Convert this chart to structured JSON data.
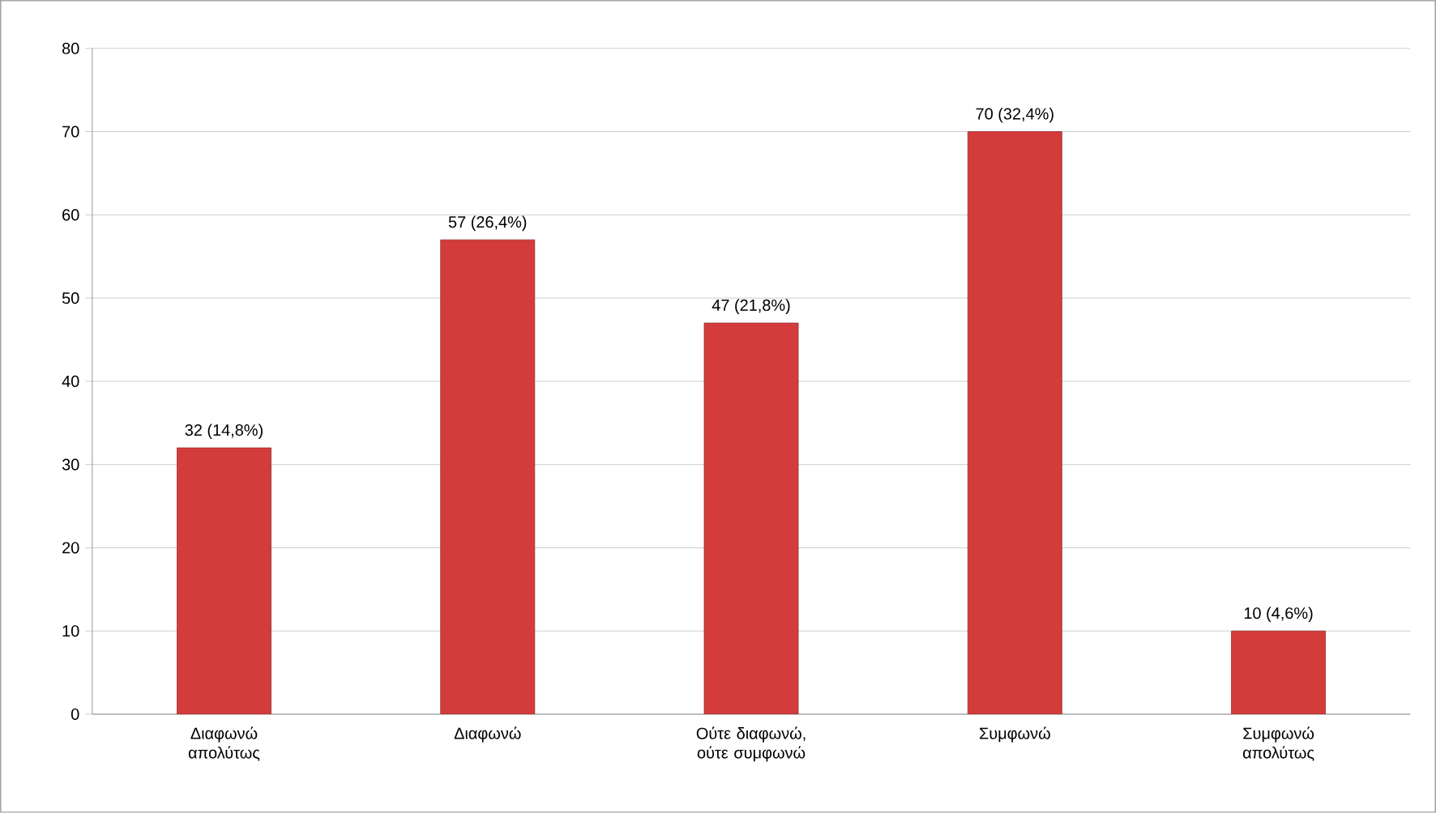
{
  "chart_data": {
    "type": "bar",
    "categories": [
      "Διαφωνώ απολύτως",
      "Διαφωνώ",
      "Ούτε διαφωνώ, ούτε συμφωνώ",
      "Συμφωνώ",
      "Συμφωνώ απολύτως"
    ],
    "values": [
      32,
      57,
      47,
      70,
      10
    ],
    "value_labels": [
      "32 (14,8%)",
      "57 (26,4%)",
      "47 (21,8%)",
      "70 (32,4%)",
      "10 (4,6%)"
    ],
    "color": "#d43c3c",
    "ylim": [
      0,
      80
    ],
    "yticks": [
      0,
      10,
      20,
      30,
      40,
      50,
      60,
      70,
      80
    ],
    "grid": "y"
  }
}
